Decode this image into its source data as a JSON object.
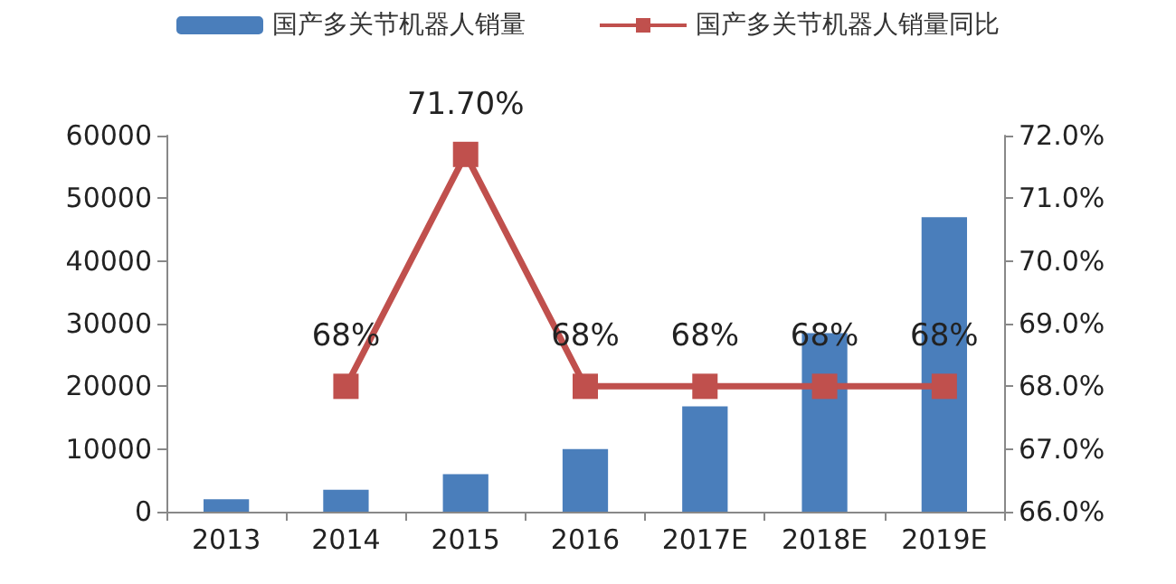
{
  "chart_data": {
    "type": "bar",
    "categories": [
      "2013",
      "2014",
      "2015",
      "2016",
      "2017E",
      "2018E",
      "2019E"
    ],
    "series": [
      {
        "name": "国产多关节机器人销量",
        "color": "#4a7ebb",
        "values": [
          2000,
          3500,
          6000,
          10000,
          16800,
          28500,
          47000
        ]
      },
      {
        "name": "国产多关节机器人销量同比",
        "type": "line",
        "axis": "y2",
        "color": "#c0504d",
        "marker": "square",
        "values": [
          null,
          68,
          71.7,
          68,
          68,
          68,
          68
        ],
        "value_labels": [
          null,
          "68%",
          "71.70%",
          "68%",
          "68%",
          "68%",
          "68%"
        ]
      }
    ],
    "ylim": [
      0,
      60000
    ],
    "yticks": [
      0,
      10000,
      20000,
      30000,
      40000,
      50000,
      60000
    ],
    "y2lim": [
      66,
      72
    ],
    "y2ticks": [
      {
        "value": 66,
        "label": "66.0%"
      },
      {
        "value": 67,
        "label": "67.0%"
      },
      {
        "value": 68,
        "label": "68.0%"
      },
      {
        "value": 69,
        "label": "69.0%"
      },
      {
        "value": 70,
        "label": "70.0%"
      },
      {
        "value": 71,
        "label": "71.0%"
      },
      {
        "value": 72,
        "label": "72.0%"
      }
    ],
    "legend": "top",
    "grid": false
  }
}
